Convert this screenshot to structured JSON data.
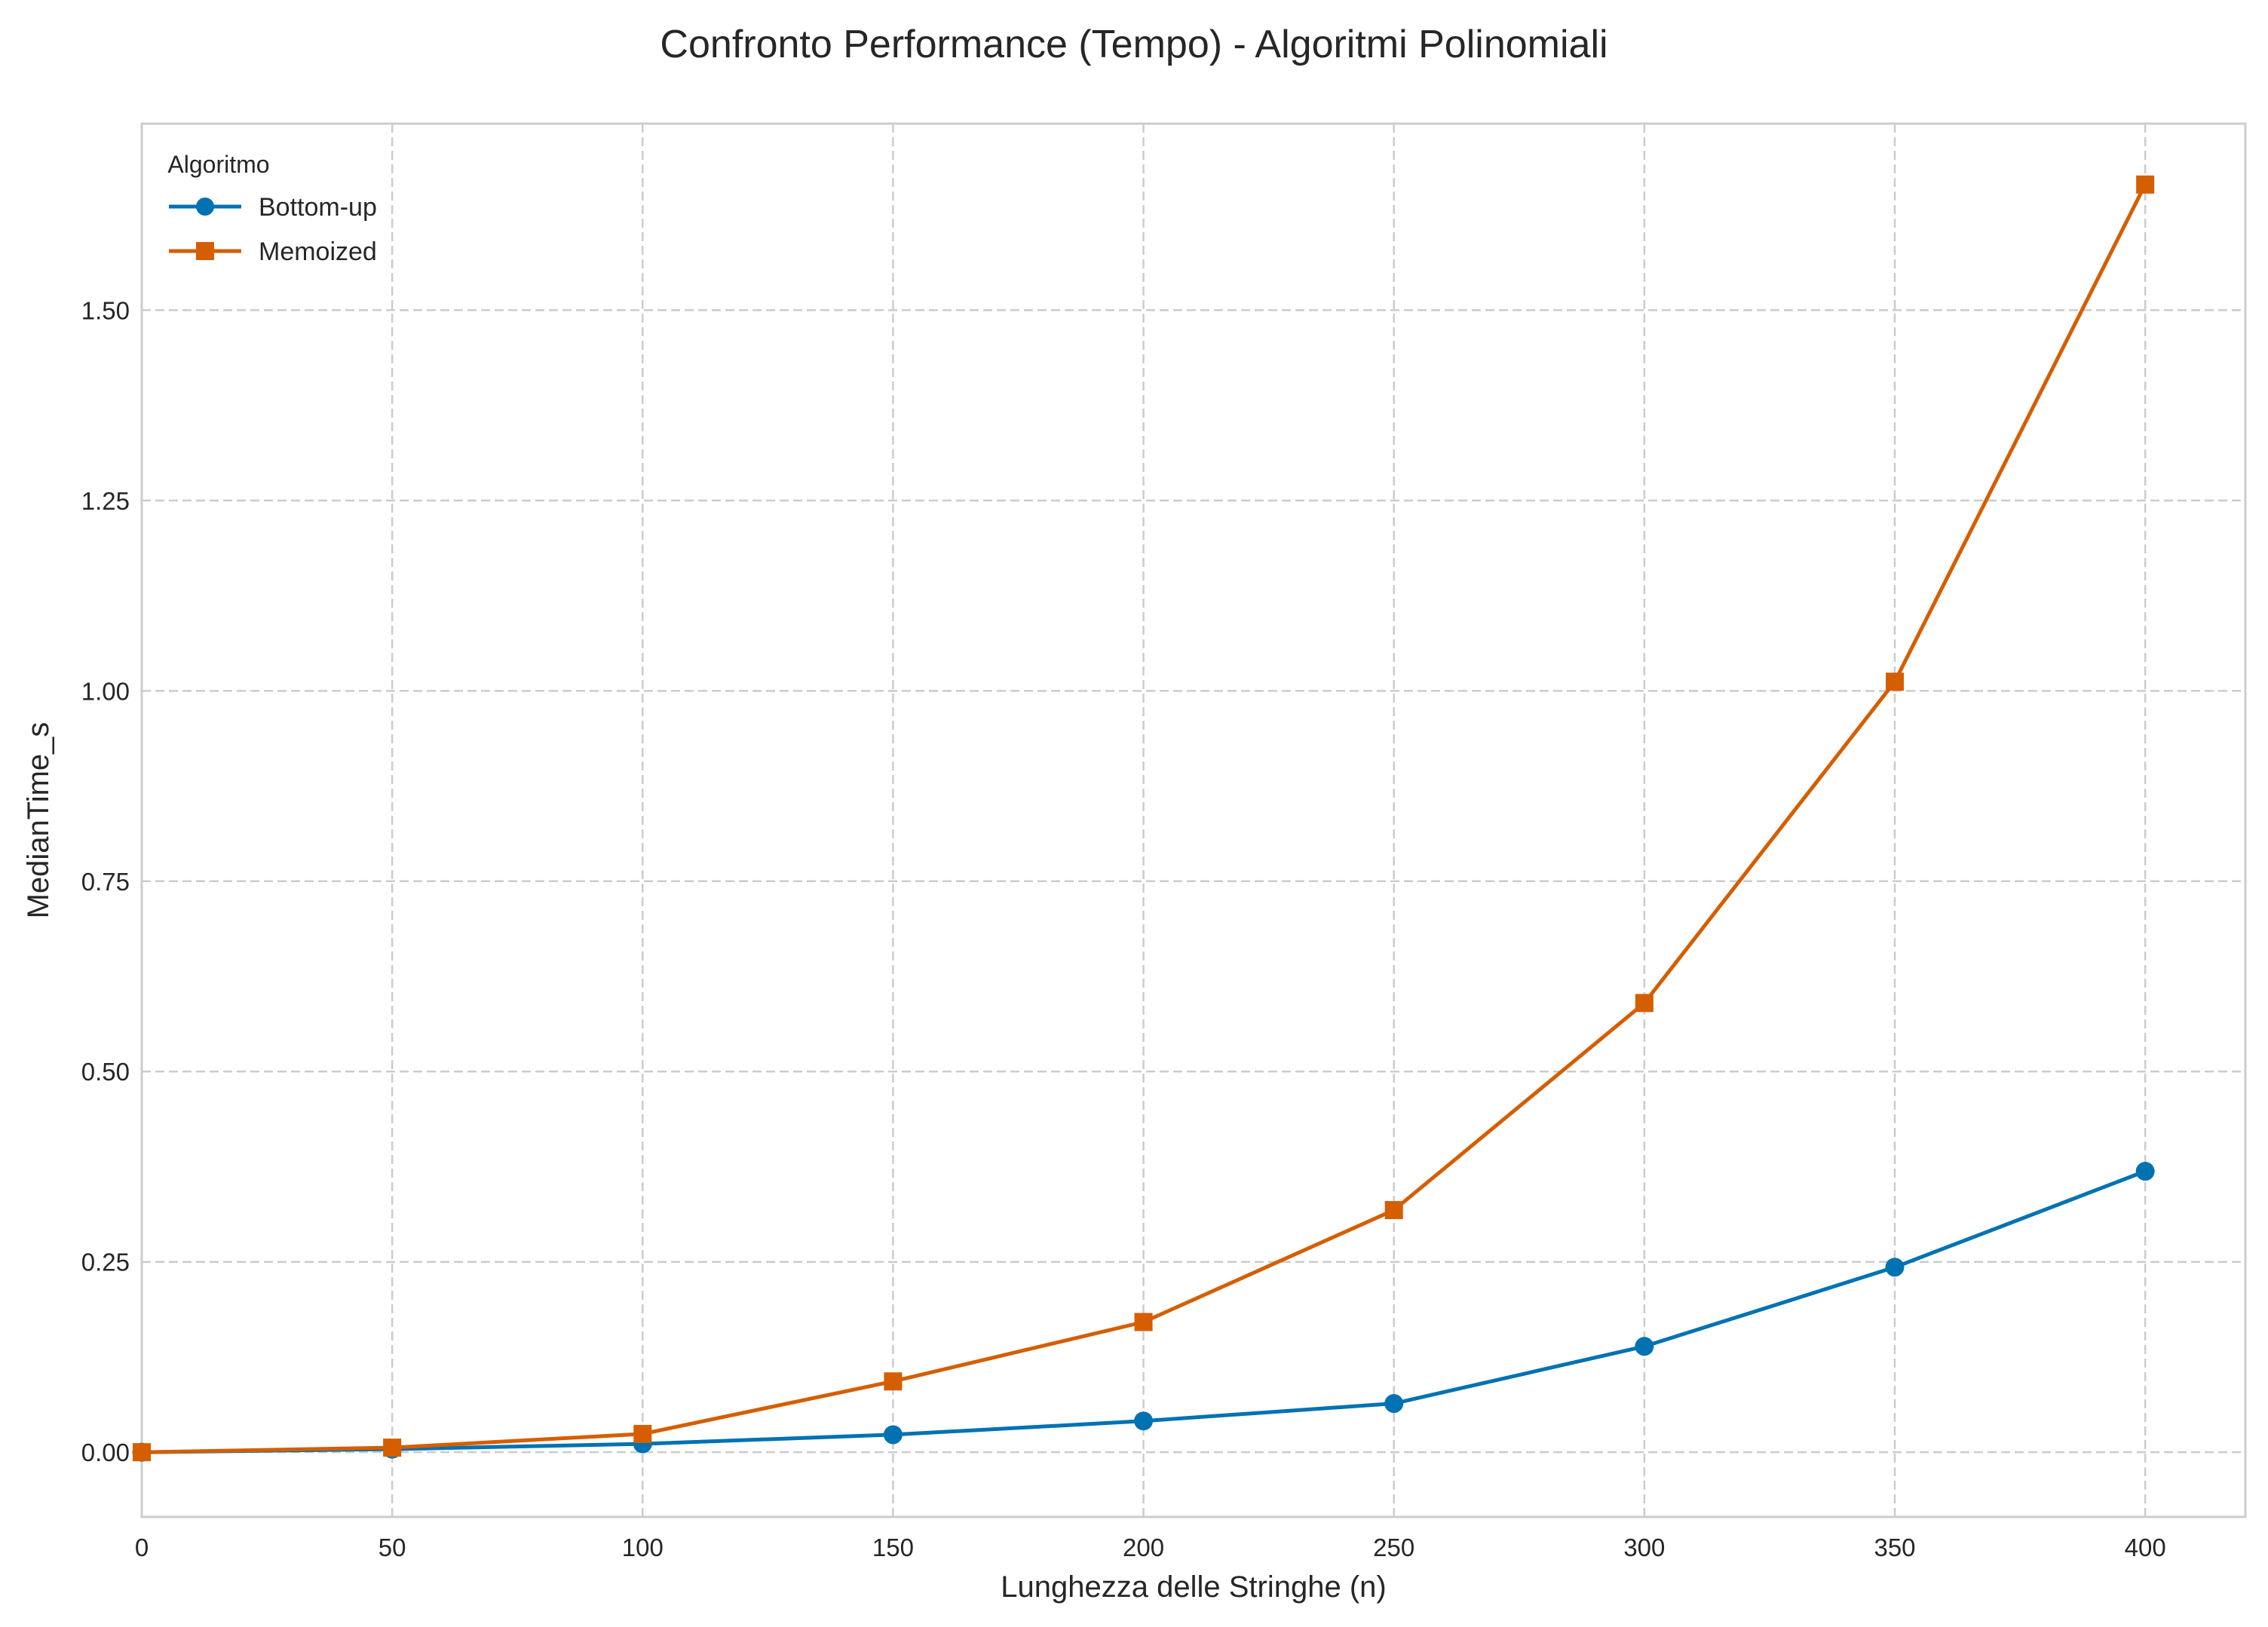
{
  "chart_data": {
    "type": "line",
    "title": "Confronto Performance (Tempo) - Algoritmi Polinomiali",
    "xlabel": "Lunghezza delle Stringhe (n)",
    "ylabel": "MedianTime_s",
    "xlim": [
      0,
      420
    ],
    "ylim": [
      -0.085,
      1.745
    ],
    "x_ticks": [
      0,
      50,
      100,
      150,
      200,
      250,
      300,
      350,
      400
    ],
    "x_tick_labels": [
      "0",
      "50",
      "100",
      "150",
      "200",
      "250",
      "300",
      "350",
      "400"
    ],
    "y_ticks": [
      0,
      0.25,
      0.5,
      0.75,
      1.0,
      1.25,
      1.5
    ],
    "y_tick_labels": [
      "0.00",
      "0.25",
      "0.50",
      "0.75",
      "1.00",
      "1.25",
      "1.50"
    ],
    "grid": true,
    "legend": {
      "title": "Algoritmo",
      "position": "top-left"
    },
    "x": [
      0,
      50,
      100,
      150,
      200,
      250,
      300,
      350,
      400
    ],
    "series": [
      {
        "name": "Bottom-up",
        "marker": "circle",
        "color": "#0072b2",
        "values": [
          0.0,
          0.004,
          0.011,
          0.023,
          0.041,
          0.064,
          0.139,
          0.243,
          0.369
        ]
      },
      {
        "name": "Memoized",
        "marker": "square",
        "color": "#d55e00",
        "values": [
          0.0,
          0.006,
          0.024,
          0.093,
          0.171,
          0.318,
          0.59,
          1.012,
          1.665
        ]
      }
    ]
  }
}
